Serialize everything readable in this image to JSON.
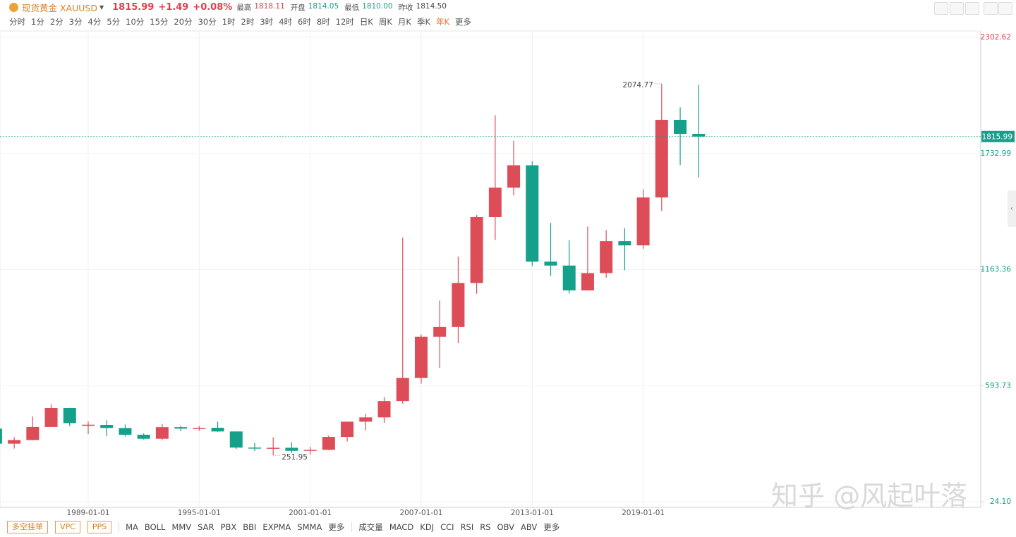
{
  "header": {
    "name": "现货黄金 XAUUSD",
    "change": "+1.49",
    "change_pct": "+0.08%",
    "stats": [
      {
        "label": "最高",
        "value": "1818.11",
        "color": "#d9434f"
      },
      {
        "label": "开盘",
        "value": "1814.05",
        "color": "#14a08a"
      },
      {
        "label": "最低",
        "value": "1810.00",
        "color": "#14a08a"
      },
      {
        "label": "昨收",
        "value": "1814.50",
        "color": "#444"
      }
    ]
  },
  "periods": {
    "items": [
      "分时",
      "1分",
      "2分",
      "3分",
      "4分",
      "5分",
      "10分",
      "15分",
      "20分",
      "30分",
      "1时",
      "2时",
      "3时",
      "4时",
      "6时",
      "8时",
      "12时",
      "日K",
      "周K",
      "月K",
      "季K",
      "年K",
      "更多"
    ],
    "active": 21
  },
  "footer": {
    "buttons": [
      "多空挂单",
      "VPC",
      "PPS"
    ],
    "main": [
      "MA",
      "BOLL",
      "MMV",
      "SAR",
      "PBX",
      "BBI",
      "EXPMA",
      "SMMA",
      "更多"
    ],
    "sub": [
      "成交量",
      "MACD",
      "KDJ",
      "CCI",
      "RSI",
      "RS",
      "OBV",
      "ABV",
      "更多"
    ]
  },
  "watermark": "知乎 @风起叶落",
  "chart_data": {
    "type": "candlestick",
    "up_color": "#dd4d58",
    "down_color": "#14a08a",
    "grid": true,
    "x": [
      "1984-01-01",
      "1985-01-01",
      "1986-01-01",
      "1987-01-01",
      "1988-01-01",
      "1989-01-01",
      "1990-01-01",
      "1991-01-01",
      "1992-01-01",
      "1993-01-01",
      "1994-01-01",
      "1995-01-01",
      "1996-01-01",
      "1997-01-01",
      "1998-01-01",
      "1999-01-01",
      "2000-01-01",
      "2001-01-01",
      "2002-01-01",
      "2003-01-01",
      "2004-01-01",
      "2005-01-01",
      "2006-01-01",
      "2007-01-01",
      "2008-01-01",
      "2009-01-01",
      "2010-01-01",
      "2011-01-01",
      "2012-01-01",
      "2013-01-01",
      "2014-01-01",
      "2015-01-01",
      "2016-01-01",
      "2017-01-01",
      "2018-01-01",
      "2019-01-01",
      "2020-01-01",
      "2021-01-01",
      "2022-01-01"
    ],
    "open": [
      383,
      309,
      327,
      391,
      484,
      401,
      401,
      386,
      353,
      333,
      390,
      383,
      387,
      369,
      290,
      288,
      289,
      274,
      279,
      342,
      417,
      438,
      518,
      632,
      834,
      882,
      1097,
      1421,
      1565,
      1675,
      1202,
      1183,
      1061,
      1146,
      1303,
      1282,
      1517,
      1898,
      1829
    ],
    "high": [
      406,
      341,
      443,
      502,
      485,
      418,
      424,
      403,
      360,
      406,
      397,
      396,
      416,
      369,
      313,
      340,
      316,
      293,
      349,
      417,
      455,
      538,
      1320,
      845,
      1011,
      1227,
      1431,
      1921,
      1796,
      1694,
      1392,
      1307,
      1375,
      1357,
      1366,
      1557,
      2074.77,
      1959,
      2070
    ],
    "low": [
      303,
      285,
      326,
      390,
      395,
      356,
      346,
      344,
      330,
      326,
      370,
      372,
      367,
      283,
      273,
      251.95,
      264,
      256,
      278,
      320,
      375,
      411,
      506,
      603,
      681,
      802,
      1045,
      1308,
      1527,
      1180,
      1132,
      1046,
      1061,
      1123,
      1160,
      1266,
      1451,
      1676,
      1615
    ],
    "close": [
      309,
      327,
      391,
      484,
      410,
      402,
      386,
      353,
      333,
      390,
      383,
      387,
      369,
      290,
      288,
      289,
      274,
      279,
      342,
      417,
      438,
      518,
      632,
      834,
      882,
      1097,
      1421,
      1565,
      1675,
      1202,
      1183,
      1061,
      1146,
      1303,
      1282,
      1517,
      1898,
      1829,
      1815.99
    ],
    "ylim": [
      24.1,
      2302.62
    ],
    "yticks": [
      {
        "value": 24.1,
        "label": "24.10"
      },
      593.73,
      1163.36,
      1732.99,
      2302.62
    ]
  }
}
